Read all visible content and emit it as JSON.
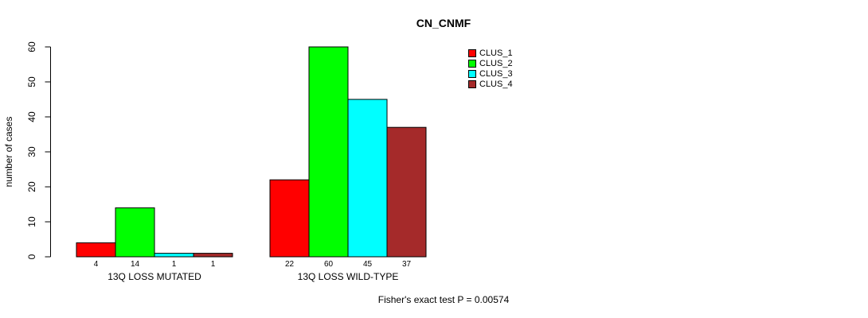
{
  "chart_data": {
    "type": "bar",
    "title": "CN_CNMF",
    "xlabel": "",
    "ylabel": "number of cases",
    "ylim": [
      0,
      60
    ],
    "yticks": [
      0,
      10,
      20,
      30,
      40,
      50,
      60
    ],
    "grid": false,
    "legend_position": "top-right",
    "categories": [
      "13Q LOSS MUTATED",
      "13Q LOSS WILD-TYPE"
    ],
    "series": [
      {
        "name": "CLUS_1",
        "color": "#FF0000",
        "values": [
          4,
          22
        ]
      },
      {
        "name": "CLUS_2",
        "color": "#00FF00",
        "values": [
          14,
          60
        ]
      },
      {
        "name": "CLUS_3",
        "color": "#00FFFF",
        "values": [
          1,
          45
        ]
      },
      {
        "name": "CLUS_4",
        "color": "#A52A2A",
        "values": [
          1,
          37
        ]
      }
    ],
    "bar_value_labels_shown": true,
    "annotation": "Fisher's exact test P = 0.00574"
  }
}
